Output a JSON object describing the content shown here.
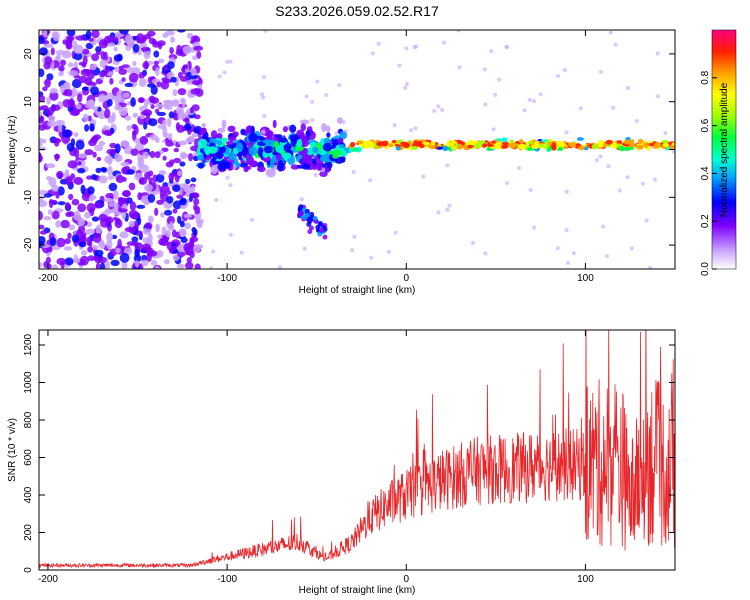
{
  "title": "S233.2026.059.02.52.R17",
  "chart_data": [
    {
      "type": "heatmap",
      "name": "spectrogram",
      "xlabel": "Height of straight line (km)",
      "ylabel": "Frequency (Hz)",
      "xlim": [
        -205,
        150
      ],
      "ylim": [
        -25,
        25
      ],
      "xticks": [
        -200,
        -100,
        0,
        100
      ],
      "yticks": [
        -20,
        -10,
        0,
        10,
        20
      ],
      "colorbar": {
        "label": "Normalized spectral amplitude",
        "range": [
          0.0,
          1.0
        ],
        "ticks": [
          0.0,
          0.2,
          0.4,
          0.6,
          0.8
        ],
        "tick_labels": [
          "0.0",
          "0.2",
          "0.4",
          "0.6",
          "0.8"
        ],
        "colors": [
          "#ffffff",
          "#c8a0ff",
          "#8000ff",
          "#0000ff",
          "#00a0ff",
          "#00ffd0",
          "#00ff40",
          "#a0ff00",
          "#ffff00",
          "#ffa000",
          "#ff2000",
          "#ff0080"
        ]
      },
      "features": [
        {
          "desc": "broadband noise",
          "x_range": [
            -205,
            -115
          ],
          "f_range": [
            -25,
            25
          ],
          "amplitude": 0.2
        },
        {
          "desc": "signal band",
          "x_range": [
            -115,
            -35
          ],
          "f_center": 0,
          "f_width": 6,
          "amplitude": 0.4
        },
        {
          "desc": "signal line",
          "x_range": [
            -40,
            150
          ],
          "f_center": 1,
          "f_width": 2,
          "amplitude": 0.9
        },
        {
          "desc": "low branch",
          "x_range": [
            -60,
            -45
          ],
          "f_center": -13,
          "amplitude": 0.25
        }
      ]
    },
    {
      "type": "line",
      "name": "snr",
      "xlabel": "Height of straight line (km)",
      "ylabel": "SNR (10 * v/v)",
      "xlim": [
        -205,
        150
      ],
      "ylim": [
        0,
        1280
      ],
      "xticks": [
        -200,
        -100,
        0,
        100
      ],
      "yticks": [
        0,
        200,
        400,
        600,
        800,
        1000,
        1200
      ],
      "color": "#e8262a",
      "envelope": [
        {
          "x": -205,
          "y": 25
        },
        {
          "x": -120,
          "y": 25
        },
        {
          "x": -110,
          "y": 50
        },
        {
          "x": -100,
          "y": 70
        },
        {
          "x": -80,
          "y": 110
        },
        {
          "x": -60,
          "y": 150
        },
        {
          "x": -45,
          "y": 60
        },
        {
          "x": -30,
          "y": 150
        },
        {
          "x": -20,
          "y": 280
        },
        {
          "x": -10,
          "y": 350
        },
        {
          "x": 0,
          "y": 400
        },
        {
          "x": 20,
          "y": 480
        },
        {
          "x": 40,
          "y": 530
        },
        {
          "x": 60,
          "y": 540
        },
        {
          "x": 80,
          "y": 560
        },
        {
          "x": 100,
          "y": 560
        },
        {
          "x": 120,
          "y": 580
        },
        {
          "x": 125,
          "y": 380
        },
        {
          "x": 135,
          "y": 600
        },
        {
          "x": 150,
          "y": 500
        }
      ]
    }
  ]
}
